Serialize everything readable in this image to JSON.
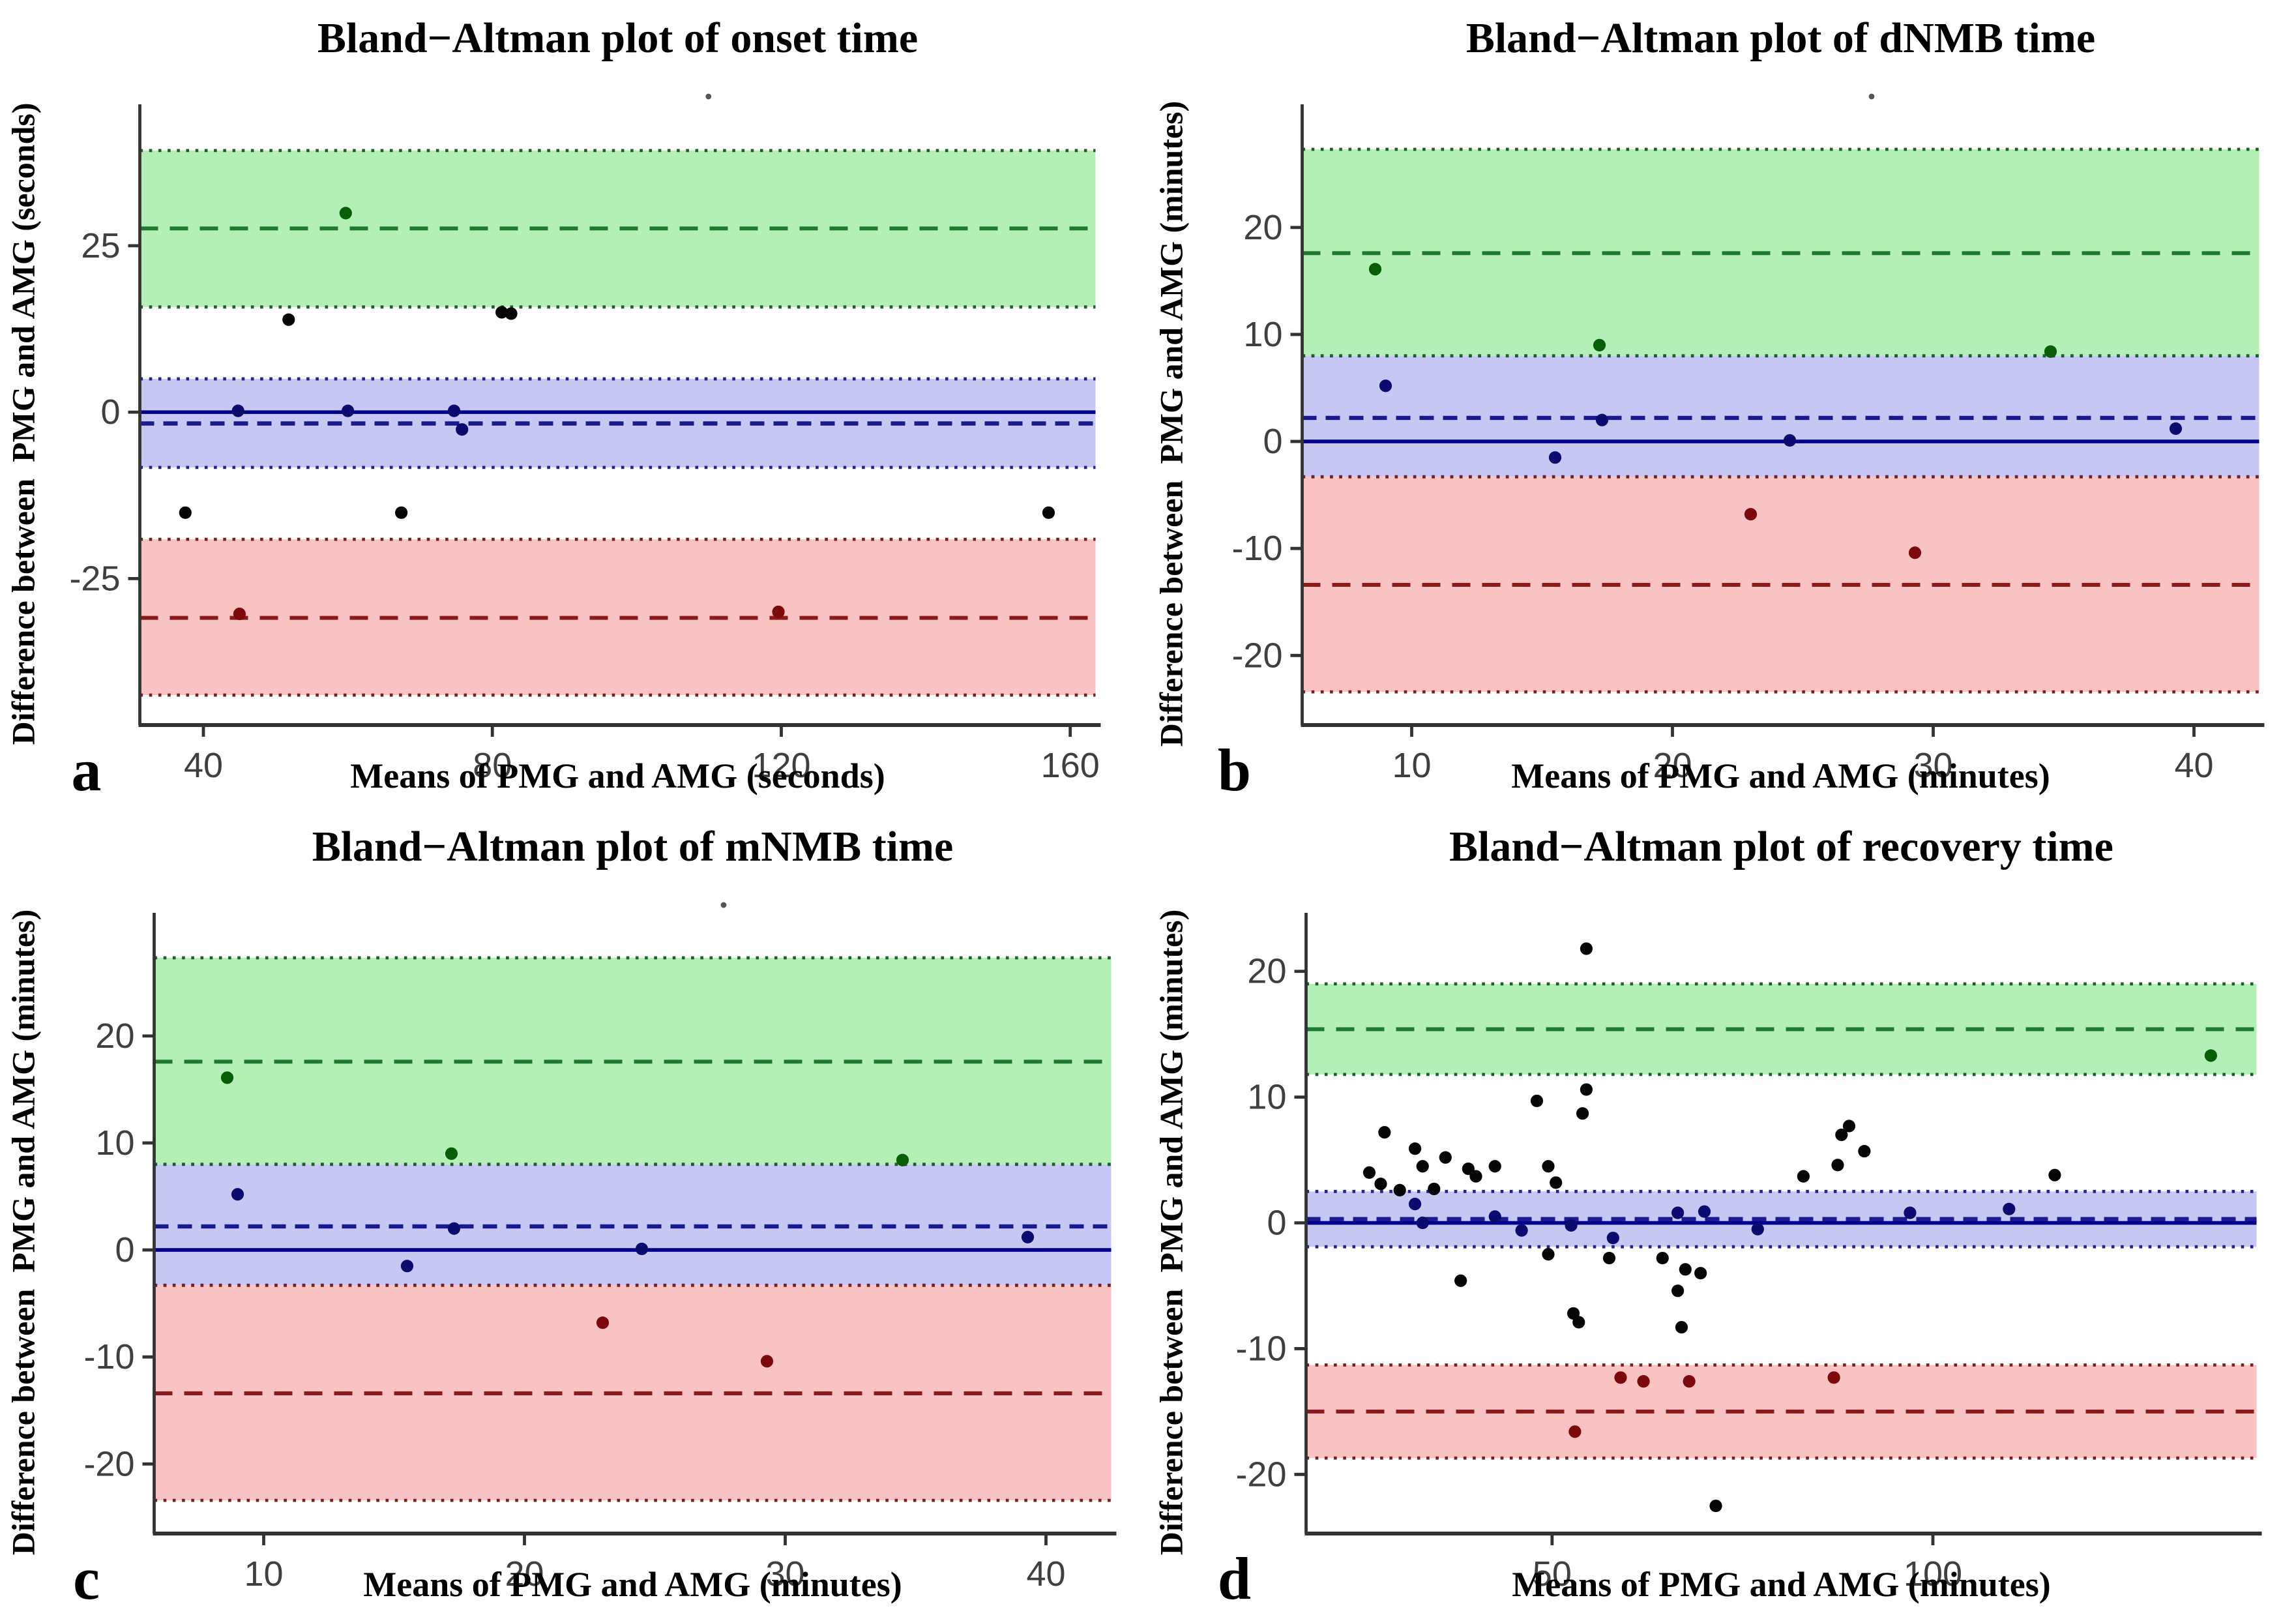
{
  "figure": {
    "background": "#ffffff",
    "colors": {
      "upper_band_fill": "#b4f0b6",
      "upper_edge": "#1d5e2a",
      "upper_loa_line": "#1e7a2e",
      "bias_band_fill": "#c6c7f2",
      "bias_edge": "#23238c",
      "bias_line": "#1a1a8f",
      "zero_line": "#00008b",
      "lower_band_fill": "#fac3c3",
      "lower_edge": "#7a1f1f",
      "lower_loa_line": "#8b1a1a",
      "point_black": "#060606",
      "point_blue": "#0b0b70",
      "point_green": "#075e07",
      "point_red": "#7c0a0a",
      "axis": "#333333",
      "tick_label": "#3f3f3f",
      "title": "#000000",
      "artifact_dot": "#555555"
    }
  },
  "chart_data": [
    {
      "id": "a",
      "letter": "a",
      "type": "scatter",
      "title": "Bland−Altman plot of onset time",
      "xlabel": "Means of PMG and AMG (seconds)",
      "ylabel": "Difference between  PMG and AMG (seconds)",
      "xlim": [
        31.2,
        163.5
      ],
      "ylim": [
        -47,
        43.5
      ],
      "xticks": [
        40,
        80,
        120,
        160
      ],
      "yticks": [
        25,
        0,
        -25
      ],
      "zero_line": 0,
      "bias": {
        "mean": -1.7,
        "ci": [
          -8.3,
          5.0
        ]
      },
      "upper_loa": {
        "value": 27.6,
        "ci": [
          15.8,
          39.3
        ]
      },
      "lower_loa": {
        "value": -30.9,
        "ci": [
          -42.5,
          -19.1
        ]
      },
      "title_artifact_dot": true,
      "margins": {
        "l": 107,
        "r": 840,
        "t": 94,
        "b": 556
      },
      "points": {
        "black": [
          [
            37.5,
            -15.1
          ],
          [
            51.8,
            13.9
          ],
          [
            67.4,
            -15.1
          ],
          [
            81.3,
            15.0
          ],
          [
            82.6,
            14.8
          ],
          [
            157,
            -15.1
          ]
        ],
        "blue": [
          [
            44.8,
            0.2
          ],
          [
            60,
            0.2
          ],
          [
            74.7,
            0.2
          ],
          [
            75.8,
            -2.6
          ]
        ],
        "green": [
          [
            59.7,
            29.9
          ]
        ],
        "red": [
          [
            45,
            -30.3
          ],
          [
            119.6,
            -30.0
          ]
        ]
      }
    },
    {
      "id": "b",
      "letter": "b",
      "type": "scatter",
      "title": "Bland−Altman plot of dNMB time",
      "xlabel": "Means of PMG and AMG (minutes)",
      "ylabel": "Difference between  PMG and AMG (minutes)",
      "xlim": [
        5.8,
        42.5
      ],
      "ylim": [
        -26.5,
        29.8
      ],
      "xticks": [
        10,
        20,
        30,
        40
      ],
      "yticks": [
        20,
        10,
        0,
        -10,
        -20
      ],
      "zero_line": 0,
      "bias": {
        "mean": 2.2,
        "ci": [
          -3.3,
          8.0
        ]
      },
      "upper_loa": {
        "value": 17.6,
        "ci": [
          8.0,
          27.3
        ]
      },
      "lower_loa": {
        "value": -13.4,
        "ci": [
          -23.4,
          -3.3
        ]
      },
      "title_artifact_dot": true,
      "margins": {
        "l": 118,
        "r": 852,
        "t": 94,
        "b": 556
      },
      "points": {
        "black": [],
        "blue": [
          [
            9.0,
            5.2
          ],
          [
            15.5,
            -1.5
          ],
          [
            17.3,
            2.0
          ],
          [
            24.5,
            0.1
          ],
          [
            39.3,
            1.2
          ]
        ],
        "green": [
          [
            8.6,
            16.1
          ],
          [
            17.2,
            9.0
          ],
          [
            34.5,
            8.4
          ]
        ],
        "red": [
          [
            23.0,
            -6.8
          ],
          [
            29.3,
            -10.4
          ]
        ]
      }
    },
    {
      "id": "c",
      "letter": "c",
      "type": "scatter",
      "title": "Bland−Altman plot of mNMB time",
      "xlabel": "Means of PMG and AMG (minutes)",
      "ylabel": "Difference between  PMG and AMG (minutes)",
      "xlim": [
        5.8,
        42.5
      ],
      "ylim": [
        -26.5,
        29.8
      ],
      "xticks": [
        10,
        20,
        30,
        40
      ],
      "yticks": [
        20,
        10,
        0,
        -10,
        -20
      ],
      "zero_line": 0,
      "bias": {
        "mean": 2.2,
        "ci": [
          -3.3,
          8.0
        ]
      },
      "upper_loa": {
        "value": 17.6,
        "ci": [
          8.0,
          27.3
        ]
      },
      "lower_loa": {
        "value": -13.4,
        "ci": [
          -23.4,
          -3.3
        ]
      },
      "title_artifact_dot": true,
      "margins": {
        "l": 118,
        "r": 852,
        "t": 94,
        "b": 556
      },
      "points": {
        "black": [],
        "blue": [
          [
            9.0,
            5.2
          ],
          [
            15.5,
            -1.5
          ],
          [
            17.3,
            2.0
          ],
          [
            24.5,
            0.1
          ],
          [
            39.3,
            1.2
          ]
        ],
        "green": [
          [
            8.6,
            16.1
          ],
          [
            17.2,
            9.0
          ],
          [
            34.5,
            8.4
          ]
        ],
        "red": [
          [
            23.0,
            -6.8
          ],
          [
            29.3,
            -10.4
          ]
        ]
      }
    },
    {
      "id": "d",
      "letter": "d",
      "type": "scatter",
      "title": "Bland−Altman plot of recovery time",
      "xlabel": "Means of PMG and AMG (minutes)",
      "ylabel": "Difference between  PMG and AMG (minutes)",
      "xlim": [
        17.7,
        142.5
      ],
      "ylim": [
        -24.7,
        23.2
      ],
      "xticks": [
        50,
        100
      ],
      "yticks": [
        20,
        10,
        0,
        -10,
        -20
      ],
      "zero_line": 0,
      "bias": {
        "mean": 0.3,
        "ci": [
          -1.9,
          2.5
        ]
      },
      "upper_loa": {
        "value": 15.4,
        "ci": [
          11.8,
          19.0
        ]
      },
      "lower_loa": {
        "value": -15.0,
        "ci": [
          -18.7,
          -11.3
        ]
      },
      "title_artifact_dot": false,
      "margins": {
        "l": 121,
        "r": 850,
        "t": 94,
        "b": 556
      },
      "points": {
        "black": [
          [
            26,
            4.0
          ],
          [
            27.5,
            3.1
          ],
          [
            28,
            7.2
          ],
          [
            30,
            2.6
          ],
          [
            32,
            5.9
          ],
          [
            33,
            4.5
          ],
          [
            34.5,
            2.7
          ],
          [
            36,
            5.2
          ],
          [
            38,
            -4.6
          ],
          [
            39,
            4.3
          ],
          [
            40,
            3.7
          ],
          [
            42.5,
            4.5
          ],
          [
            48,
            9.7
          ],
          [
            49.5,
            4.5
          ],
          [
            49.5,
            -2.5
          ],
          [
            50.5,
            3.2
          ],
          [
            52.8,
            -7.2
          ],
          [
            53.5,
            -7.9
          ],
          [
            54,
            8.7
          ],
          [
            54.5,
            10.6
          ],
          [
            54.5,
            21.8
          ],
          [
            57.5,
            -2.8
          ],
          [
            64.5,
            -2.8
          ],
          [
            66.5,
            -5.4
          ],
          [
            67,
            -8.3
          ],
          [
            67.5,
            -3.7
          ],
          [
            69.5,
            -4.0
          ],
          [
            71.5,
            -22.5
          ],
          [
            83,
            3.7
          ],
          [
            87.5,
            4.6
          ],
          [
            88,
            7.0
          ],
          [
            89,
            7.7
          ],
          [
            91,
            5.7
          ],
          [
            116,
            3.8
          ]
        ],
        "blue": [
          [
            32,
            1.5
          ],
          [
            33,
            0.0
          ],
          [
            42.5,
            0.5
          ],
          [
            46,
            -0.6
          ],
          [
            52.5,
            -0.2
          ],
          [
            58,
            -1.2
          ],
          [
            66.5,
            0.8
          ],
          [
            70,
            0.9
          ],
          [
            77,
            -0.5
          ],
          [
            97,
            0.8
          ],
          [
            110,
            1.1
          ]
        ],
        "green": [
          [
            136.5,
            13.3
          ]
        ],
        "red": [
          [
            53,
            -16.6
          ],
          [
            59,
            -12.3
          ],
          [
            62,
            -12.6
          ],
          [
            68,
            -12.6
          ],
          [
            87,
            -12.3
          ]
        ]
      }
    }
  ]
}
